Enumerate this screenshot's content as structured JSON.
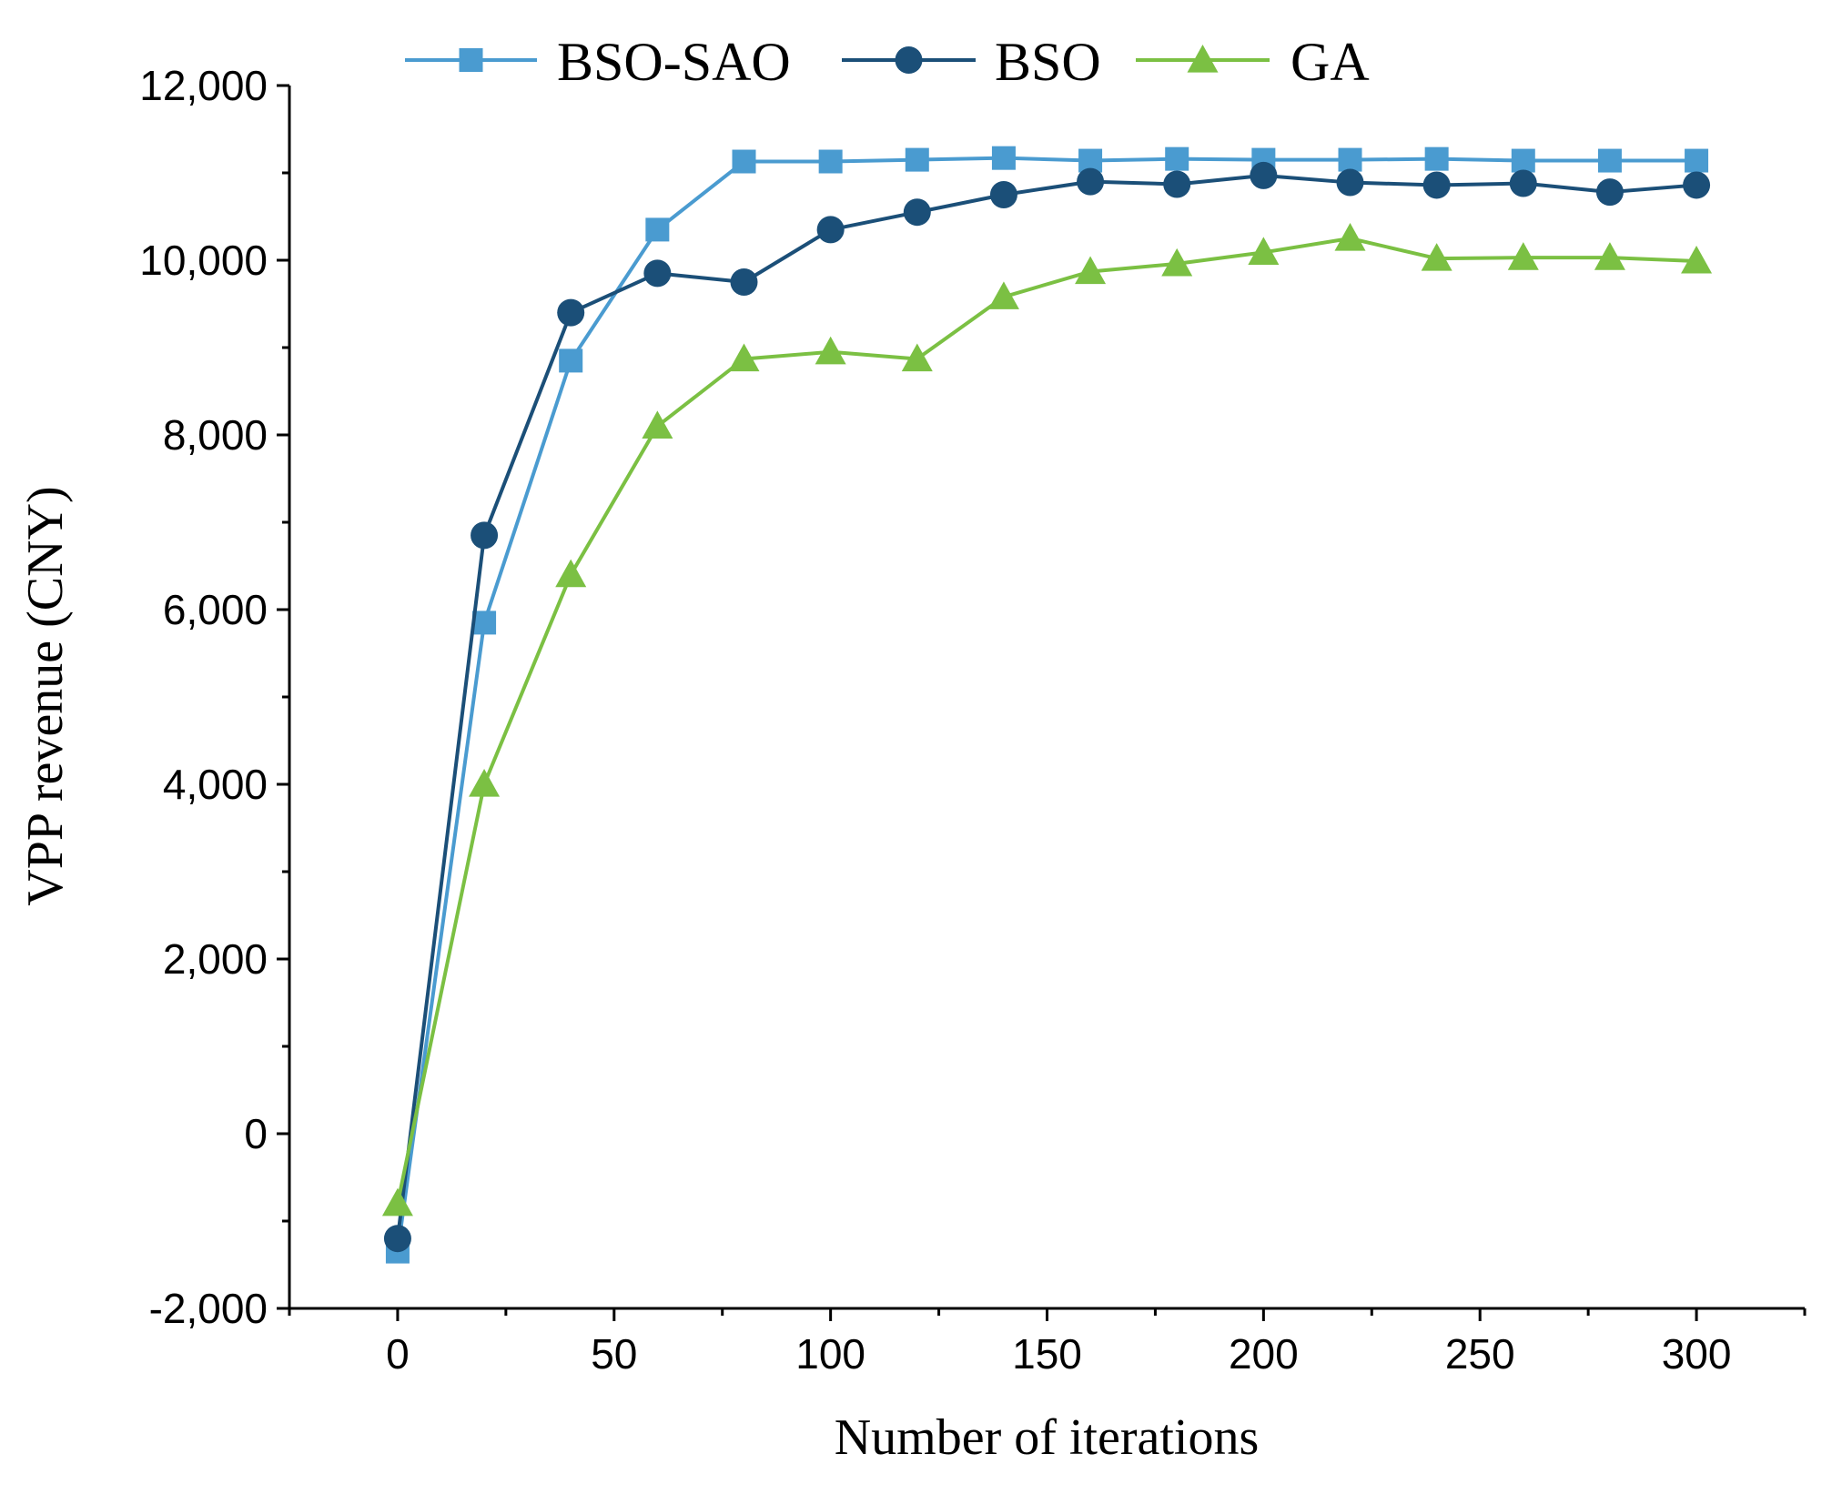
{
  "chart_data": {
    "type": "line",
    "title": "",
    "xlabel": "Number of iterations",
    "ylabel": "VPP revenue (CNY)",
    "x": [
      0,
      20,
      40,
      60,
      80,
      100,
      120,
      140,
      160,
      180,
      200,
      220,
      240,
      260,
      280,
      300
    ],
    "xlim": [
      -25,
      325
    ],
    "ylim": [
      -2000,
      12000
    ],
    "xticks": [
      0,
      50,
      100,
      150,
      200,
      250,
      300
    ],
    "xtick_labels": [
      "0",
      "50",
      "100",
      "150",
      "200",
      "250",
      "300"
    ],
    "yticks": [
      -2000,
      0,
      2000,
      4000,
      6000,
      8000,
      10000,
      12000
    ],
    "ytick_labels": [
      "-2,000",
      "0",
      "2,000",
      "4,000",
      "6,000",
      "8,000",
      "10,000",
      "12,000"
    ],
    "grid": false,
    "legend_position": "top",
    "series": [
      {
        "name": "BSO-SAO",
        "marker": "square",
        "color": "#4A9BD0",
        "values": [
          -1350,
          5850,
          8850,
          10350,
          11130,
          11130,
          11150,
          11170,
          11140,
          11160,
          11150,
          11150,
          11160,
          11140,
          11140,
          11140
        ]
      },
      {
        "name": "BSO",
        "marker": "circle",
        "color": "#1B4F78",
        "values": [
          -1200,
          6850,
          9400,
          9850,
          9750,
          10350,
          10550,
          10750,
          10900,
          10870,
          10970,
          10890,
          10860,
          10880,
          10780,
          10860
        ]
      },
      {
        "name": "GA",
        "marker": "triangle",
        "color": "#7BC043",
        "values": [
          -800,
          4000,
          6400,
          8100,
          8870,
          8950,
          8870,
          9580,
          9870,
          9960,
          10090,
          10250,
          10020,
          10030,
          10030,
          9990
        ]
      }
    ]
  }
}
